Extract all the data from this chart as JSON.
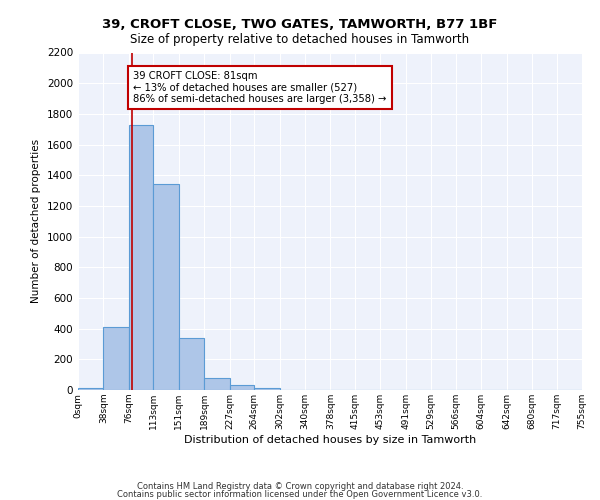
{
  "title1": "39, CROFT CLOSE, TWO GATES, TAMWORTH, B77 1BF",
  "title2": "Size of property relative to detached houses in Tamworth",
  "xlabel": "Distribution of detached houses by size in Tamworth",
  "ylabel": "Number of detached properties",
  "bar_color": "#aec6e8",
  "bar_edge_color": "#5b9bd5",
  "bg_color": "#eef2fb",
  "grid_color": "#ffffff",
  "annotation_line_color": "#c00000",
  "annotation_box_color": "#c00000",
  "annotation_text": "39 CROFT CLOSE: 81sqm\n← 13% of detached houses are smaller (527)\n86% of semi-detached houses are larger (3,358) →",
  "property_line_x": 81,
  "bin_edges": [
    0,
    38,
    76,
    113,
    151,
    189,
    227,
    264,
    302,
    340,
    378,
    415,
    453,
    491,
    529,
    566,
    604,
    642,
    680,
    717,
    755
  ],
  "bin_labels": [
    "0sqm",
    "38sqm",
    "76sqm",
    "113sqm",
    "151sqm",
    "189sqm",
    "227sqm",
    "264sqm",
    "302sqm",
    "340sqm",
    "378sqm",
    "415sqm",
    "453sqm",
    "491sqm",
    "529sqm",
    "566sqm",
    "604sqm",
    "642sqm",
    "680sqm",
    "717sqm",
    "755sqm"
  ],
  "counts": [
    15,
    410,
    1730,
    1345,
    340,
    75,
    30,
    15,
    0,
    0,
    0,
    0,
    0,
    0,
    0,
    0,
    0,
    0,
    0,
    0
  ],
  "ylim": [
    0,
    2200
  ],
  "yticks": [
    0,
    200,
    400,
    600,
    800,
    1000,
    1200,
    1400,
    1600,
    1800,
    2000,
    2200
  ],
  "footer1": "Contains HM Land Registry data © Crown copyright and database right 2024.",
  "footer2": "Contains public sector information licensed under the Open Government Licence v3.0."
}
